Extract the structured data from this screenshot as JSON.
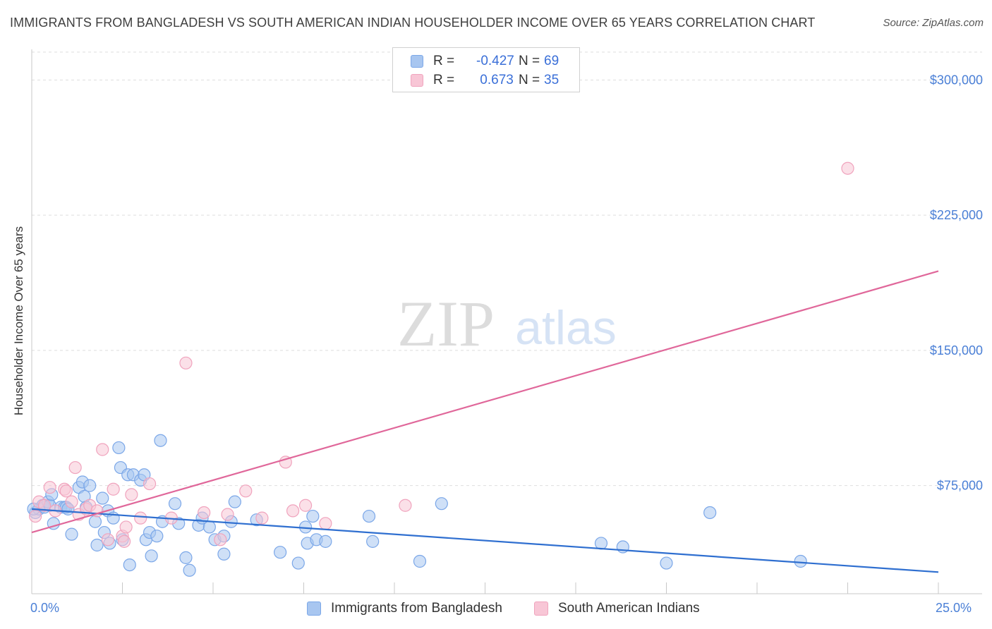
{
  "chart_data": {
    "type": "scatter",
    "title": "IMMIGRANTS FROM BANGLADESH VS SOUTH AMERICAN INDIAN HOUSEHOLDER INCOME OVER 65 YEARS CORRELATION CHART",
    "source": "Source: ZipAtlas.com",
    "xlabel": "",
    "ylabel": "Householder Income Over 65 years",
    "xlim": [
      0,
      25
    ],
    "ylim": [
      15000,
      317000
    ],
    "x_tick_labels": [
      "0.0%",
      "25.0%"
    ],
    "y_ticks": [
      75000,
      150000,
      225000,
      300000
    ],
    "y_tick_labels": [
      "$75,000",
      "$150,000",
      "$225,000",
      "$300,000"
    ],
    "watermark": {
      "zip": "ZIP",
      "atlas": "atlas"
    },
    "legend_stats": [
      {
        "r_label": "R =",
        "r": "-0.427",
        "n_label": "N =",
        "n": "69"
      },
      {
        "r_label": "R =",
        "r": " 0.673",
        "n_label": "N =",
        "n": "35"
      }
    ],
    "series": [
      {
        "name": "Immigrants from Bangladesh",
        "color": "#7ba7e8",
        "fill": "#a8c6f0",
        "line_color": "#2f6fd0",
        "trend": {
          "x": [
            0,
            25
          ],
          "y": [
            62000,
            27000
          ]
        },
        "points": [
          [
            0.1,
            60000
          ],
          [
            0.2,
            62000
          ],
          [
            0.3,
            64000
          ],
          [
            0.35,
            63000
          ],
          [
            0.45,
            66000
          ],
          [
            0.5,
            64000
          ],
          [
            0.55,
            70000
          ],
          [
            0.6,
            54000
          ],
          [
            0.8,
            63000
          ],
          [
            0.9,
            63000
          ],
          [
            0.95,
            63000
          ],
          [
            1.0,
            62000
          ],
          [
            1.1,
            48000
          ],
          [
            1.3,
            74000
          ],
          [
            1.4,
            77000
          ],
          [
            1.45,
            69000
          ],
          [
            1.5,
            63000
          ],
          [
            1.6,
            75000
          ],
          [
            1.75,
            55000
          ],
          [
            1.8,
            42000
          ],
          [
            1.95,
            68000
          ],
          [
            2.0,
            49000
          ],
          [
            2.1,
            61000
          ],
          [
            2.15,
            43000
          ],
          [
            2.25,
            57000
          ],
          [
            2.4,
            96000
          ],
          [
            2.45,
            85000
          ],
          [
            2.5,
            45000
          ],
          [
            2.65,
            81000
          ],
          [
            2.7,
            31000
          ],
          [
            2.8,
            81000
          ],
          [
            3.0,
            78000
          ],
          [
            3.1,
            81000
          ],
          [
            3.15,
            45000
          ],
          [
            3.25,
            49000
          ],
          [
            3.3,
            36000
          ],
          [
            3.45,
            47000
          ],
          [
            3.55,
            100000
          ],
          [
            3.6,
            55000
          ],
          [
            3.95,
            65000
          ],
          [
            4.05,
            54000
          ],
          [
            4.25,
            35000
          ],
          [
            4.35,
            28000
          ],
          [
            4.6,
            53000
          ],
          [
            4.7,
            57000
          ],
          [
            4.9,
            52000
          ],
          [
            5.05,
            45000
          ],
          [
            5.3,
            47000
          ],
          [
            5.3,
            37000
          ],
          [
            5.5,
            55000
          ],
          [
            5.6,
            66000
          ],
          [
            6.2,
            56000
          ],
          [
            6.85,
            38000
          ],
          [
            7.35,
            32000
          ],
          [
            7.55,
            52000
          ],
          [
            7.6,
            43000
          ],
          [
            7.75,
            58000
          ],
          [
            7.85,
            45000
          ],
          [
            8.1,
            44000
          ],
          [
            9.3,
            58000
          ],
          [
            9.4,
            44000
          ],
          [
            10.7,
            33000
          ],
          [
            11.3,
            65000
          ],
          [
            15.7,
            43000
          ],
          [
            16.3,
            41000
          ],
          [
            17.5,
            32000
          ],
          [
            18.7,
            60000
          ],
          [
            21.2,
            33000
          ],
          [
            0.05,
            62000
          ]
        ]
      },
      {
        "name": "South American Indians",
        "color": "#f0a3bd",
        "fill": "#f8c6d6",
        "line_color": "#e0679a",
        "trend": {
          "x": [
            0,
            25
          ],
          "y": [
            49000,
            194000
          ]
        },
        "points": [
          [
            0.1,
            58000
          ],
          [
            0.2,
            66000
          ],
          [
            0.35,
            64000
          ],
          [
            0.5,
            74000
          ],
          [
            0.65,
            61000
          ],
          [
            0.9,
            73000
          ],
          [
            0.95,
            72000
          ],
          [
            1.1,
            66000
          ],
          [
            1.2,
            85000
          ],
          [
            1.3,
            59000
          ],
          [
            1.5,
            62000
          ],
          [
            1.6,
            64000
          ],
          [
            1.8,
            61000
          ],
          [
            1.95,
            95000
          ],
          [
            2.1,
            45000
          ],
          [
            2.25,
            73000
          ],
          [
            2.5,
            47000
          ],
          [
            2.55,
            44000
          ],
          [
            2.6,
            52000
          ],
          [
            2.75,
            70000
          ],
          [
            3.0,
            57000
          ],
          [
            3.25,
            76000
          ],
          [
            3.85,
            57000
          ],
          [
            4.25,
            143000
          ],
          [
            4.75,
            60000
          ],
          [
            5.2,
            45000
          ],
          [
            5.4,
            59000
          ],
          [
            5.9,
            72000
          ],
          [
            6.35,
            57000
          ],
          [
            7.0,
            88000
          ],
          [
            7.2,
            61000
          ],
          [
            7.55,
            64000
          ],
          [
            8.1,
            54000
          ],
          [
            10.3,
            64000
          ],
          [
            22.5,
            251000
          ]
        ]
      }
    ]
  }
}
